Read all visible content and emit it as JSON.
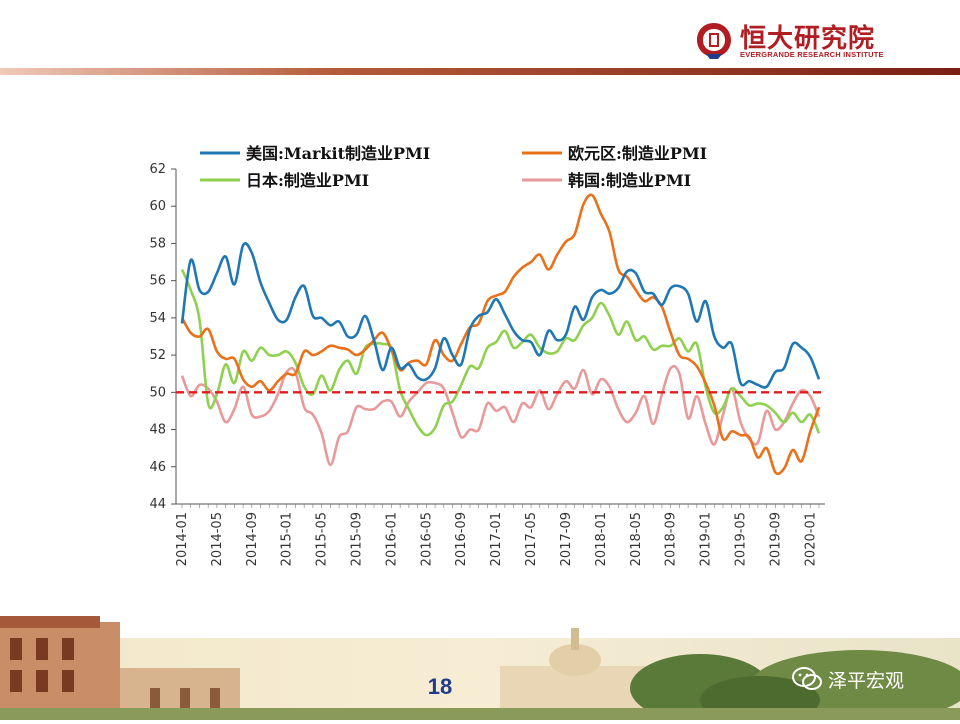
{
  "brand": {
    "name_cn": "恒大研究院",
    "name_en": "EVERGRANDE RESEARCH INSTITUTE",
    "color": "#b01e23"
  },
  "footer": {
    "page_number": "18",
    "wechat_label": "泽平宏观",
    "icon": "wechat-icon"
  },
  "chart_data": {
    "type": "line",
    "x": [
      "2014-01",
      "2014-02",
      "2014-03",
      "2014-04",
      "2014-05",
      "2014-06",
      "2014-07",
      "2014-08",
      "2014-09",
      "2014-10",
      "2014-11",
      "2014-12",
      "2015-01",
      "2015-02",
      "2015-03",
      "2015-04",
      "2015-05",
      "2015-06",
      "2015-07",
      "2015-08",
      "2015-09",
      "2015-10",
      "2015-11",
      "2015-12",
      "2016-01",
      "2016-02",
      "2016-03",
      "2016-04",
      "2016-05",
      "2016-06",
      "2016-07",
      "2016-08",
      "2016-09",
      "2016-10",
      "2016-11",
      "2016-12",
      "2017-01",
      "2017-02",
      "2017-03",
      "2017-04",
      "2017-05",
      "2017-06",
      "2017-07",
      "2017-08",
      "2017-09",
      "2017-10",
      "2017-11",
      "2017-12",
      "2018-01",
      "2018-02",
      "2018-03",
      "2018-04",
      "2018-05",
      "2018-06",
      "2018-07",
      "2018-08",
      "2018-09",
      "2018-10",
      "2018-11",
      "2018-12",
      "2019-01",
      "2019-02",
      "2019-03",
      "2019-04",
      "2019-05",
      "2019-06",
      "2019-07",
      "2019-08",
      "2019-09",
      "2019-10",
      "2019-11",
      "2019-12",
      "2020-01",
      "2020-02"
    ],
    "x_tick_labels": [
      "2014-01",
      "2014-05",
      "2014-09",
      "2015-01",
      "2015-05",
      "2015-09",
      "2016-01",
      "2016-05",
      "2016-09",
      "2017-01",
      "2017-05",
      "2017-09",
      "2018-01",
      "2018-05",
      "2018-09",
      "2019-01",
      "2019-05",
      "2019-09",
      "2020-01"
    ],
    "ylim": [
      44,
      62
    ],
    "yticks": [
      44,
      46,
      48,
      50,
      52,
      54,
      56,
      58,
      60,
      62
    ],
    "reference_line": {
      "value": 50,
      "color": "#e31a1c",
      "style": "dashed"
    },
    "legend_placement": "top",
    "series": [
      {
        "name": "美国:Markit制造业PMI",
        "color": "#1f77b4",
        "values": [
          53.7,
          57.1,
          55.5,
          55.4,
          56.4,
          57.3,
          55.8,
          57.9,
          57.5,
          55.9,
          54.8,
          53.9,
          53.9,
          55.1,
          55.7,
          54.1,
          54.0,
          53.6,
          53.8,
          53.0,
          53.1,
          54.1,
          52.8,
          51.2,
          52.4,
          51.3,
          51.5,
          50.8,
          50.7,
          51.3,
          52.9,
          52.0,
          51.5,
          53.4,
          54.1,
          54.3,
          55.0,
          54.2,
          53.3,
          52.8,
          52.7,
          52.0,
          53.3,
          52.8,
          53.1,
          54.6,
          53.9,
          55.1,
          55.5,
          55.3,
          55.6,
          56.5,
          56.4,
          55.4,
          55.3,
          54.7,
          55.6,
          55.7,
          55.3,
          53.8,
          54.9,
          53.0,
          52.4,
          52.6,
          50.5,
          50.6,
          50.4,
          50.3,
          51.1,
          51.3,
          52.6,
          52.4,
          51.9,
          50.7
        ]
      },
      {
        "name": "欧元区:制造业PMI",
        "color": "#e8711a",
        "values": [
          54.0,
          53.2,
          53.0,
          53.4,
          52.2,
          51.8,
          51.8,
          50.7,
          50.3,
          50.6,
          50.1,
          50.6,
          51.0,
          51.0,
          52.2,
          52.0,
          52.2,
          52.5,
          52.4,
          52.3,
          52.0,
          52.3,
          52.8,
          53.2,
          52.3,
          51.2,
          51.6,
          51.7,
          51.5,
          52.8,
          52.0,
          51.7,
          52.6,
          53.5,
          53.7,
          54.9,
          55.2,
          55.4,
          56.2,
          56.7,
          57.0,
          57.4,
          56.6,
          57.4,
          58.1,
          58.5,
          60.1,
          60.6,
          59.6,
          58.6,
          56.6,
          56.2,
          55.5,
          54.9,
          55.1,
          54.6,
          53.2,
          52.0,
          51.8,
          51.4,
          50.5,
          49.3,
          47.5,
          47.9,
          47.7,
          47.6,
          46.5,
          47.0,
          45.7,
          45.9,
          46.9,
          46.3,
          47.9,
          49.2
        ]
      },
      {
        "name": "日本:制造业PMI",
        "color": "#8fd14f",
        "values": [
          56.6,
          55.5,
          53.9,
          49.4,
          49.9,
          51.5,
          50.5,
          52.2,
          51.7,
          52.4,
          52.0,
          52.0,
          52.2,
          51.6,
          50.3,
          49.9,
          50.9,
          50.1,
          51.2,
          51.7,
          51.0,
          52.4,
          52.6,
          52.6,
          52.3,
          50.1,
          49.1,
          48.2,
          47.7,
          48.1,
          49.3,
          49.5,
          50.4,
          51.4,
          51.3,
          52.4,
          52.7,
          53.3,
          52.4,
          52.7,
          53.1,
          52.4,
          52.1,
          52.2,
          52.9,
          52.8,
          53.6,
          54.0,
          54.8,
          54.1,
          53.1,
          53.8,
          52.8,
          53.0,
          52.3,
          52.5,
          52.5,
          52.9,
          52.2,
          52.6,
          50.3,
          48.9,
          49.2,
          50.2,
          49.8,
          49.3,
          49.4,
          49.3,
          48.9,
          48.4,
          48.9,
          48.4,
          48.8,
          47.8
        ]
      },
      {
        "name": "韩国:制造业PMI",
        "color": "#e89a9a",
        "values": [
          50.9,
          49.8,
          50.4,
          50.2,
          49.5,
          48.4,
          49.1,
          50.3,
          48.8,
          48.7,
          49.0,
          49.9,
          51.1,
          51.1,
          49.2,
          48.8,
          47.8,
          46.1,
          47.6,
          47.9,
          49.2,
          49.1,
          49.1,
          49.5,
          49.5,
          48.7,
          49.5,
          50.0,
          50.5,
          50.5,
          50.2,
          48.9,
          47.6,
          48.0,
          48.0,
          49.4,
          49.0,
          49.2,
          48.4,
          49.4,
          49.2,
          50.1,
          49.1,
          49.9,
          50.6,
          50.2,
          51.2,
          49.9,
          50.7,
          50.3,
          49.1,
          48.4,
          48.9,
          49.8,
          48.3,
          49.9,
          51.3,
          51.0,
          48.6,
          49.8,
          48.3,
          47.2,
          48.8,
          50.2,
          48.4,
          47.5,
          47.3,
          49.0,
          48.0,
          48.4,
          49.4,
          50.1,
          49.8,
          48.7
        ]
      }
    ]
  }
}
